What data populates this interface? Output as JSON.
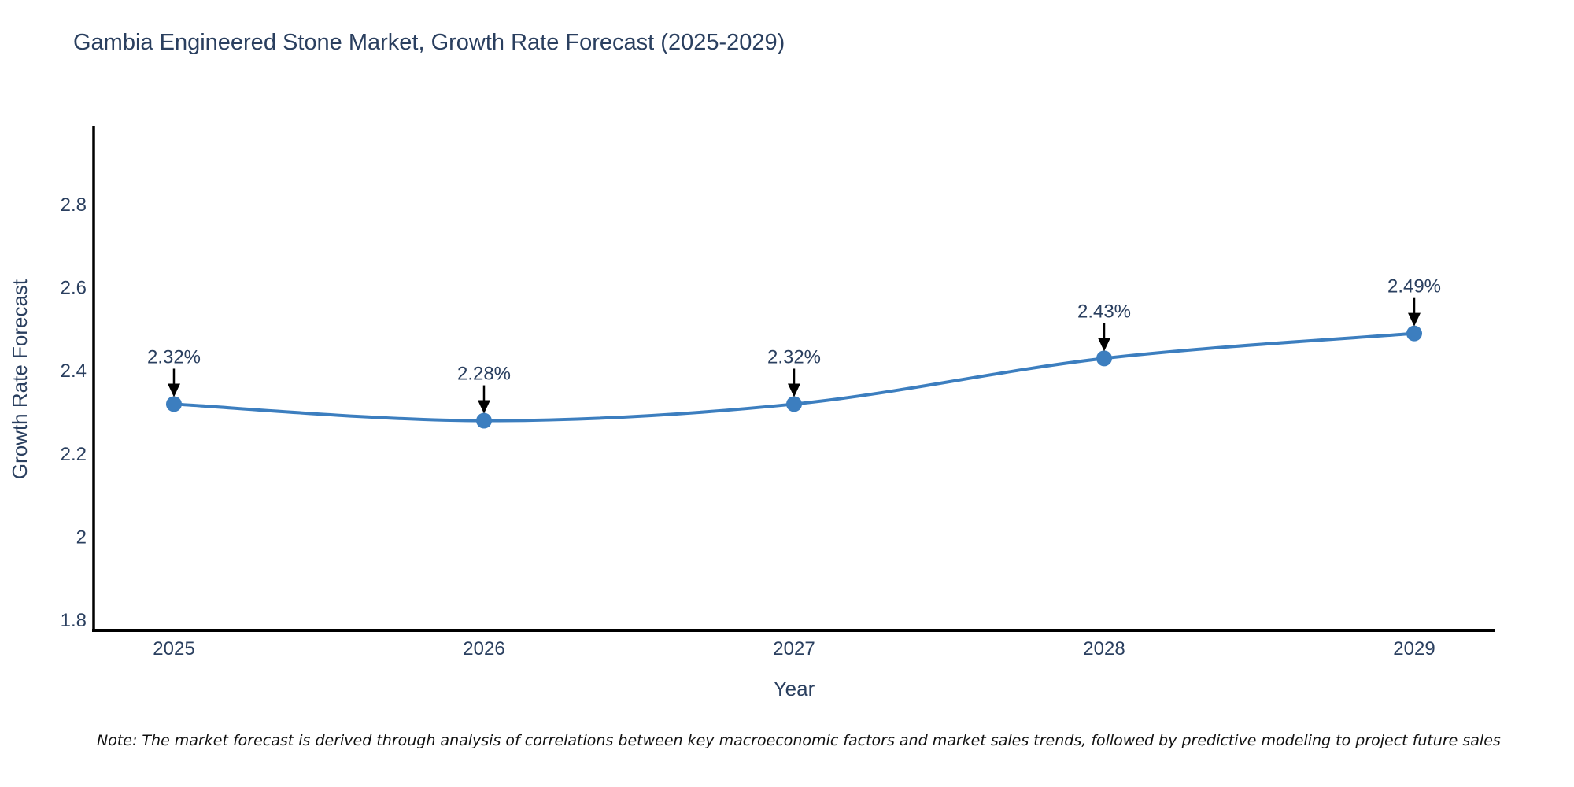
{
  "note": "Note: The market forecast is derived through analysis of correlations between key macroeconomic factors and market sales trends, followed by predictive modeling to project future sales",
  "colors": {
    "title_text": "#2a3f5f",
    "tick_text": "#2a3f5f",
    "axis_line": "#000000",
    "series_line": "#3c7ebf",
    "marker_fill": "#3c7ebf",
    "annotation_arrow": "#000000",
    "background": "#ffffff"
  },
  "chart_data": {
    "type": "line",
    "title": "Gambia Engineered Stone Market, Growth Rate Forecast (2025-2029)",
    "xlabel": "Year",
    "ylabel": "Growth Rate Forecast",
    "categories": [
      "2025",
      "2026",
      "2027",
      "2028",
      "2029"
    ],
    "series": [
      {
        "name": "Growth Rate Forecast",
        "values": [
          2.32,
          2.28,
          2.32,
          2.43,
          2.49
        ]
      }
    ],
    "point_labels": [
      "2.32%",
      "2.28%",
      "2.32%",
      "2.43%",
      "2.49%"
    ],
    "yticks": [
      1.8,
      2.0,
      2.2,
      2.4,
      2.6,
      2.8
    ],
    "ytick_labels": [
      "1.8",
      "2",
      "2.2",
      "2.4",
      "2.6",
      "2.8"
    ],
    "ylim": [
      1.775,
      2.99
    ],
    "grid": false,
    "legend": false,
    "line_shape": "spline",
    "marker_size": 10,
    "line_width": 4
  }
}
